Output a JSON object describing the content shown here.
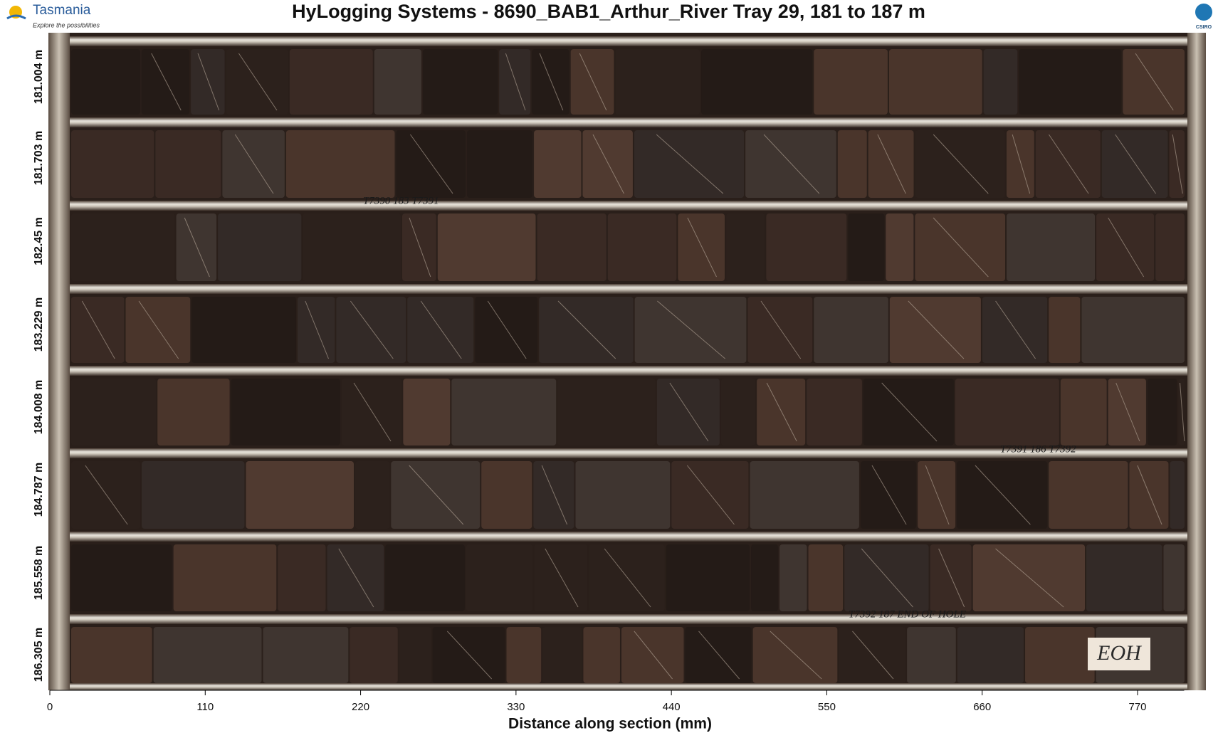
{
  "header": {
    "title": "HyLogging Systems  -  8690_BAB1_Arthur_River  Tray 29,  181 to 187 m",
    "left_logo": "Tasmania",
    "left_logo_tagline": "Explore the possibilities",
    "right_logo": "CSIRO"
  },
  "depth_labels": [
    "181.004 m",
    "181.703 m",
    "182.45 m",
    "183.229 m",
    "184.008 m",
    "184.787 m",
    "185.558 m",
    "186.305 m"
  ],
  "annotations": [
    "T7390  183 T7391",
    "T7391  186 T7392",
    "T7392  187 END OF HOLE",
    "EOH"
  ],
  "x_axis": {
    "label": "Distance along section (mm)",
    "xlim": [
      0,
      803
    ],
    "ticks": [
      0,
      110,
      220,
      330,
      440,
      550,
      660,
      770
    ]
  }
}
